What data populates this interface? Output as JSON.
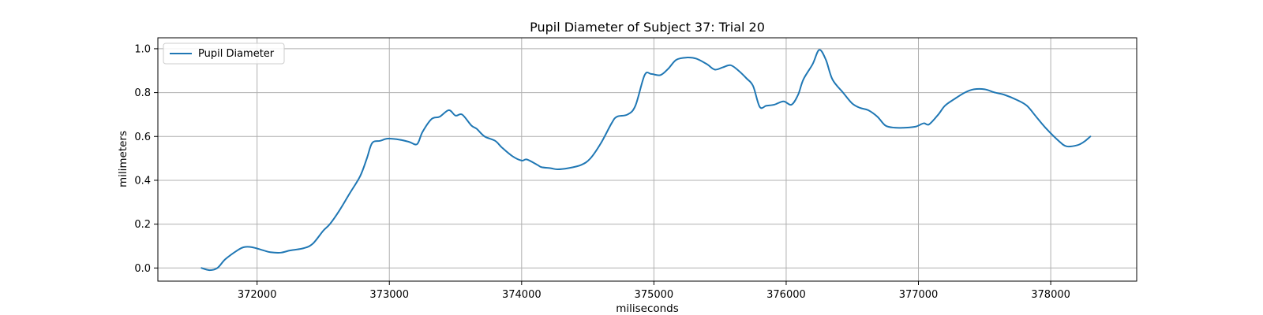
{
  "chart_data": {
    "type": "line",
    "title": "Pupil Diameter of Subject 37: Trial 20",
    "xlabel": "miliseconds",
    "ylabel": "milimeters",
    "xlim": [
      371250,
      378650
    ],
    "ylim": [
      -0.06,
      1.05
    ],
    "xticks": [
      372000,
      373000,
      374000,
      375000,
      376000,
      377000,
      378000
    ],
    "yticks": [
      0.0,
      0.2,
      0.4,
      0.6,
      0.8,
      1.0
    ],
    "xtick_labels": [
      "372000",
      "373000",
      "374000",
      "375000",
      "376000",
      "377000",
      "378000"
    ],
    "ytick_labels": [
      "0.0",
      "0.2",
      "0.4",
      "0.6",
      "0.8",
      "1.0"
    ],
    "grid": true,
    "legend": {
      "position": "top-left",
      "entries": [
        "Pupil Diameter"
      ]
    },
    "series": [
      {
        "name": "Pupil Diameter",
        "color": "#1f77b4",
        "points": [
          [
            371580,
            0.0
          ],
          [
            371640,
            -0.01
          ],
          [
            371700,
            0.0
          ],
          [
            371760,
            0.04
          ],
          [
            371850,
            0.08
          ],
          [
            371900,
            0.095
          ],
          [
            371960,
            0.095
          ],
          [
            372050,
            0.08
          ],
          [
            372100,
            0.072
          ],
          [
            372180,
            0.07
          ],
          [
            372250,
            0.08
          ],
          [
            372350,
            0.09
          ],
          [
            372420,
            0.11
          ],
          [
            372500,
            0.17
          ],
          [
            372550,
            0.2
          ],
          [
            372620,
            0.26
          ],
          [
            372700,
            0.34
          ],
          [
            372780,
            0.42
          ],
          [
            372830,
            0.5
          ],
          [
            372870,
            0.57
          ],
          [
            372930,
            0.58
          ],
          [
            372990,
            0.59
          ],
          [
            373080,
            0.585
          ],
          [
            373150,
            0.575
          ],
          [
            373210,
            0.565
          ],
          [
            373250,
            0.62
          ],
          [
            373320,
            0.68
          ],
          [
            373380,
            0.69
          ],
          [
            373450,
            0.72
          ],
          [
            373500,
            0.695
          ],
          [
            373550,
            0.7
          ],
          [
            373620,
            0.65
          ],
          [
            373660,
            0.635
          ],
          [
            373720,
            0.6
          ],
          [
            373800,
            0.58
          ],
          [
            373850,
            0.55
          ],
          [
            373930,
            0.51
          ],
          [
            374000,
            0.49
          ],
          [
            374040,
            0.495
          ],
          [
            374120,
            0.47
          ],
          [
            374150,
            0.46
          ],
          [
            374220,
            0.455
          ],
          [
            374270,
            0.45
          ],
          [
            374350,
            0.455
          ],
          [
            374450,
            0.47
          ],
          [
            374520,
            0.5
          ],
          [
            374600,
            0.57
          ],
          [
            374680,
            0.66
          ],
          [
            374720,
            0.69
          ],
          [
            374800,
            0.7
          ],
          [
            374860,
            0.74
          ],
          [
            374930,
            0.88
          ],
          [
            374980,
            0.885
          ],
          [
            375050,
            0.88
          ],
          [
            375110,
            0.91
          ],
          [
            375170,
            0.95
          ],
          [
            375250,
            0.96
          ],
          [
            375320,
            0.955
          ],
          [
            375400,
            0.93
          ],
          [
            375460,
            0.905
          ],
          [
            375520,
            0.915
          ],
          [
            375580,
            0.925
          ],
          [
            375640,
            0.9
          ],
          [
            375700,
            0.865
          ],
          [
            375750,
            0.83
          ],
          [
            375800,
            0.735
          ],
          [
            375850,
            0.74
          ],
          [
            375910,
            0.745
          ],
          [
            375980,
            0.76
          ],
          [
            376040,
            0.745
          ],
          [
            376090,
            0.79
          ],
          [
            376130,
            0.86
          ],
          [
            376200,
            0.93
          ],
          [
            376250,
            0.995
          ],
          [
            376300,
            0.95
          ],
          [
            376350,
            0.86
          ],
          [
            376430,
            0.8
          ],
          [
            376500,
            0.75
          ],
          [
            376560,
            0.73
          ],
          [
            376620,
            0.72
          ],
          [
            376690,
            0.69
          ],
          [
            376750,
            0.65
          ],
          [
            376820,
            0.64
          ],
          [
            376900,
            0.64
          ],
          [
            376980,
            0.645
          ],
          [
            377040,
            0.66
          ],
          [
            377080,
            0.655
          ],
          [
            377150,
            0.7
          ],
          [
            377200,
            0.74
          ],
          [
            377270,
            0.77
          ],
          [
            377350,
            0.8
          ],
          [
            377420,
            0.815
          ],
          [
            377500,
            0.815
          ],
          [
            377580,
            0.8
          ],
          [
            377650,
            0.79
          ],
          [
            377750,
            0.765
          ],
          [
            377820,
            0.74
          ],
          [
            377890,
            0.69
          ],
          [
            377960,
            0.64
          ],
          [
            378060,
            0.58
          ],
          [
            378120,
            0.555
          ],
          [
            378200,
            0.56
          ],
          [
            378250,
            0.575
          ],
          [
            378300,
            0.6
          ]
        ]
      }
    ]
  }
}
